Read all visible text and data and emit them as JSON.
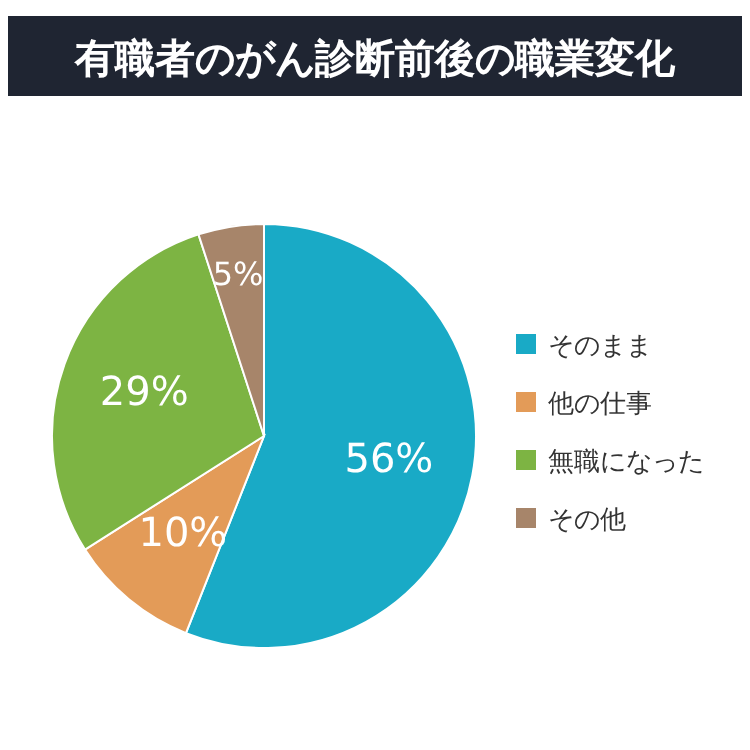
{
  "chart_data": {
    "type": "pie",
    "title": "有職者のがん診断前後の職業変化",
    "categories": [
      "そのまま",
      "他の仕事",
      "無職になった",
      "その他"
    ],
    "values": [
      56,
      10,
      29,
      5
    ],
    "colors": [
      "#19aac6",
      "#e39b58",
      "#7db443",
      "#a7856a"
    ],
    "value_labels": [
      "56%",
      "10%",
      "29%",
      "5%"
    ],
    "legend": "right"
  }
}
